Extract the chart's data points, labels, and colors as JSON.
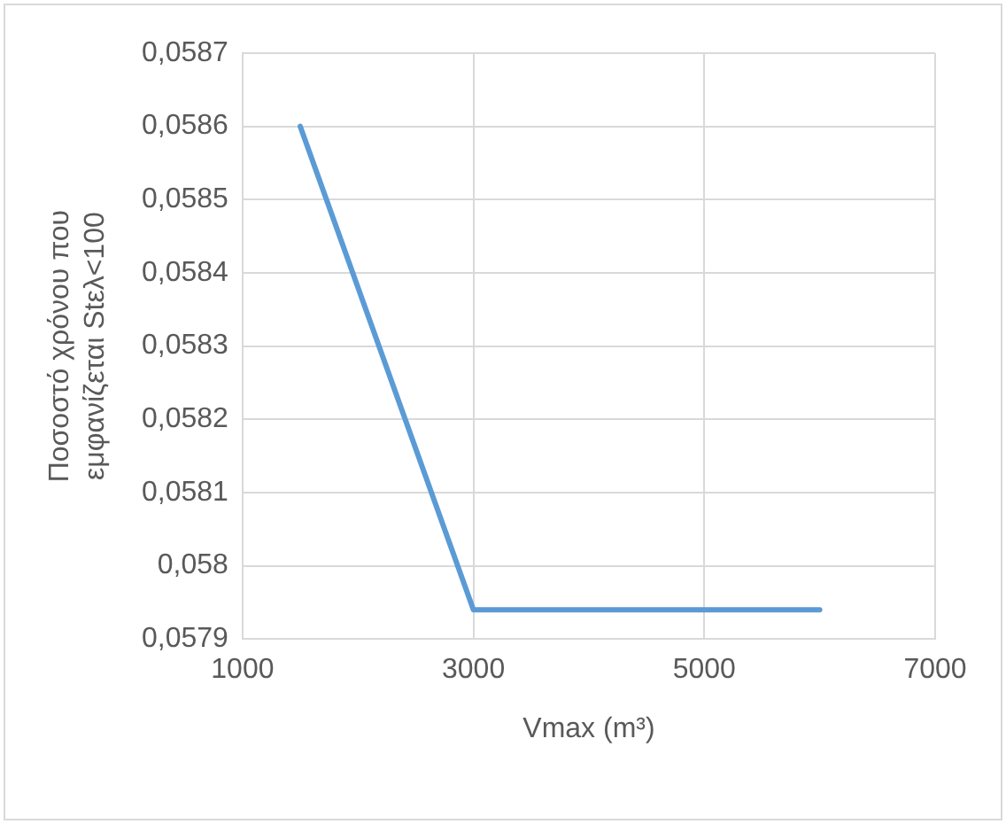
{
  "chart_data": {
    "type": "line",
    "xlabel": "Vmax (m³)",
    "ylabel": "Ποσοστό χρόνου που\nεμφανίζεται Stελ<100",
    "x": [
      1500,
      3000,
      6000
    ],
    "series": [
      {
        "color": "#5b9bd5",
        "values": [
          0.0586,
          0.05794,
          0.05794
        ]
      }
    ],
    "xlim": [
      1000,
      7000
    ],
    "xticks": [
      1000,
      3000,
      5000,
      7000
    ],
    "ylim": [
      0.0579,
      0.0587
    ],
    "yticks": [
      {
        "value": 0.0579,
        "label": "0,0579"
      },
      {
        "value": 0.058,
        "label": "0,058"
      },
      {
        "value": 0.0581,
        "label": "0,0581"
      },
      {
        "value": 0.0582,
        "label": "0,0582"
      },
      {
        "value": 0.0583,
        "label": "0,0583"
      },
      {
        "value": 0.0584,
        "label": "0,0584"
      },
      {
        "value": 0.0585,
        "label": "0,0585"
      },
      {
        "value": 0.0586,
        "label": "0,0586"
      },
      {
        "value": 0.0587,
        "label": "0,0587"
      }
    ],
    "grid": true,
    "marker": "none",
    "line_style": "solid"
  }
}
